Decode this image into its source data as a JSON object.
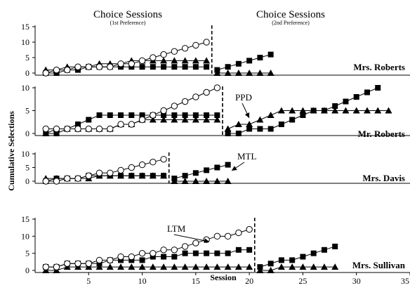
{
  "chart_data": {
    "type": "line",
    "phase_titles": [
      {
        "title": "Choice Sessions",
        "subtitle": "(1st Preference)"
      },
      {
        "title": "Choice Sessions",
        "subtitle": "(2nd Preference)"
      }
    ],
    "xlabel": "Session",
    "ylabel": "Cumulative Selections",
    "xlim": [
      0,
      35
    ],
    "xticks": [
      5,
      10,
      15,
      20,
      25,
      30,
      35
    ],
    "markers": {
      "first": "circle-open",
      "second": "square-filled",
      "third": "triangle-filled"
    },
    "panels": [
      {
        "label": "Mrs. Roberts",
        "ylim": [
          0,
          15
        ],
        "yticks": [
          0,
          5,
          10,
          15
        ],
        "phase_change_x": 16.5,
        "series": [
          {
            "marker": "circle-open",
            "x": [
              1,
              2,
              3,
              4,
              5,
              6,
              7,
              8,
              9,
              10,
              11,
              12,
              13,
              14,
              15,
              16
            ],
            "y": [
              0,
              1,
              1,
              2,
              2,
              2,
              2,
              3,
              3,
              4,
              5,
              6,
              7,
              8,
              9,
              10
            ]
          },
          {
            "marker": "square-filled",
            "x": [
              1,
              2,
              3,
              4,
              5,
              6,
              7,
              8,
              9,
              10,
              11,
              12,
              13,
              14,
              15,
              16,
              17,
              18,
              19,
              20,
              21,
              22
            ],
            "y": [
              0,
              0,
              1,
              1,
              2,
              2,
              2,
              2,
              2,
              2,
              2,
              2,
              2,
              2,
              2,
              2,
              1,
              2,
              3,
              4,
              5,
              6
            ]
          },
          {
            "marker": "triangle-filled",
            "x": [
              1,
              2,
              3,
              4,
              5,
              6,
              7,
              8,
              9,
              10,
              11,
              12,
              13,
              14,
              15,
              16,
              17,
              18,
              19,
              20,
              21,
              22
            ],
            "y": [
              1,
              1,
              2,
              2,
              2,
              3,
              3,
              3,
              4,
              4,
              4,
              4,
              4,
              4,
              4,
              4,
              0,
              0,
              0,
              0,
              0,
              0
            ]
          }
        ]
      },
      {
        "label": "Mr. Roberts",
        "ylim": [
          0,
          10
        ],
        "yticks": [
          0,
          5,
          10
        ],
        "phase_change_x": 17.5,
        "annotation": {
          "text": "PPD",
          "at": [
            19,
            3
          ]
        },
        "series": [
          {
            "marker": "circle-open",
            "x": [
              1,
              2,
              3,
              4,
              5,
              6,
              7,
              8,
              9,
              10,
              11,
              12,
              13,
              14,
              15,
              16,
              17
            ],
            "y": [
              1,
              1,
              1,
              1,
              1,
              1,
              1,
              2,
              2,
              3,
              4,
              5,
              6,
              7,
              8,
              9,
              10
            ]
          },
          {
            "marker": "square-filled",
            "x": [
              1,
              2,
              3,
              4,
              5,
              6,
              7,
              8,
              9,
              10,
              11,
              12,
              13,
              14,
              15,
              16,
              17,
              18,
              19,
              20,
              21,
              22,
              23,
              24,
              25,
              26,
              27,
              28,
              29,
              30,
              31,
              32
            ],
            "y": [
              0,
              0,
              1,
              2,
              3,
              4,
              4,
              4,
              4,
              4,
              4,
              4,
              4,
              4,
              4,
              4,
              4,
              0,
              0,
              1,
              1,
              1,
              2,
              3,
              4,
              5,
              5,
              6,
              7,
              8,
              9,
              10
            ]
          },
          {
            "marker": "triangle-filled",
            "x": [
              1,
              2,
              3,
              4,
              5,
              6,
              7,
              8,
              9,
              10,
              11,
              12,
              13,
              14,
              15,
              16,
              17,
              18,
              19,
              20,
              21,
              22,
              23,
              24,
              25,
              26,
              27,
              28,
              29,
              30,
              31,
              32,
              33
            ],
            "y": [
              0,
              1,
              1,
              1,
              1,
              1,
              1,
              2,
              2,
              3,
              3,
              3,
              3,
              3,
              3,
              3,
              3,
              1,
              2,
              2,
              3,
              4,
              5,
              5,
              5,
              5,
              5,
              5,
              5,
              5,
              5,
              5,
              5
            ]
          }
        ]
      },
      {
        "label": "Mrs. Davis",
        "ylim": [
          0,
          10
        ],
        "yticks": [
          0,
          5,
          10
        ],
        "phase_change_x": 12.5,
        "annotation": {
          "text": "MTL",
          "at": [
            17,
            6
          ]
        },
        "series": [
          {
            "marker": "circle-open",
            "x": [
              1,
              2,
              3,
              4,
              5,
              6,
              7,
              8,
              9,
              10,
              11,
              12
            ],
            "y": [
              0,
              0,
              1,
              1,
              2,
              3,
              3,
              4,
              5,
              6,
              7,
              8
            ]
          },
          {
            "marker": "square-filled",
            "x": [
              1,
              2,
              3,
              4,
              5,
              6,
              7,
              8,
              9,
              10,
              11,
              12,
              13,
              14,
              15,
              16,
              17,
              18
            ],
            "y": [
              0,
              1,
              1,
              1,
              2,
              2,
              2,
              2,
              2,
              2,
              2,
              2,
              1,
              2,
              3,
              4,
              5,
              6
            ]
          },
          {
            "marker": "triangle-filled",
            "x": [
              1,
              2,
              3,
              4,
              5,
              6,
              7,
              8,
              9,
              10,
              11,
              12,
              13,
              14,
              15,
              16,
              17,
              18
            ],
            "y": [
              1,
              1,
              1,
              1,
              1,
              2,
              2,
              2,
              2,
              2,
              2,
              2,
              0,
              0,
              0,
              0,
              0,
              0
            ]
          }
        ]
      },
      {
        "label": "Mrs. Sullivan",
        "ylim": [
          0,
          15
        ],
        "yticks": [
          0,
          5,
          10,
          15
        ],
        "phase_change_x": 20.5,
        "annotation": {
          "text": "LTM",
          "at": [
            14,
            7
          ]
        },
        "series": [
          {
            "marker": "circle-open",
            "x": [
              1,
              2,
              3,
              4,
              5,
              6,
              7,
              8,
              9,
              10,
              11,
              12,
              13,
              14,
              15,
              16,
              17,
              18,
              19,
              20
            ],
            "y": [
              1,
              1,
              2,
              2,
              2,
              3,
              3,
              4,
              4,
              5,
              5,
              6,
              6,
              7,
              8,
              9,
              10,
              10,
              11,
              12
            ]
          },
          {
            "marker": "square-filled",
            "x": [
              1,
              2,
              3,
              4,
              5,
              6,
              7,
              8,
              9,
              10,
              11,
              12,
              13,
              14,
              15,
              16,
              17,
              18,
              19,
              20,
              21,
              22,
              23,
              24,
              25,
              26,
              27,
              28
            ],
            "y": [
              1,
              1,
              2,
              2,
              2,
              2,
              3,
              3,
              3,
              3,
              4,
              4,
              4,
              5,
              5,
              5,
              5,
              5,
              6,
              6,
              1,
              2,
              3,
              3,
              4,
              5,
              6,
              7
            ]
          },
          {
            "marker": "triangle-filled",
            "x": [
              1,
              2,
              3,
              4,
              5,
              6,
              7,
              8,
              9,
              10,
              11,
              12,
              13,
              14,
              15,
              16,
              17,
              18,
              19,
              20,
              21,
              22,
              23,
              24,
              25,
              26,
              27,
              28
            ],
            "y": [
              0,
              0,
              1,
              1,
              1,
              1,
              1,
              1,
              1,
              1,
              1,
              1,
              1,
              1,
              1,
              1,
              1,
              1,
              1,
              1,
              0,
              0,
              1,
              1,
              1,
              1,
              1,
              1
            ]
          }
        ]
      }
    ]
  }
}
